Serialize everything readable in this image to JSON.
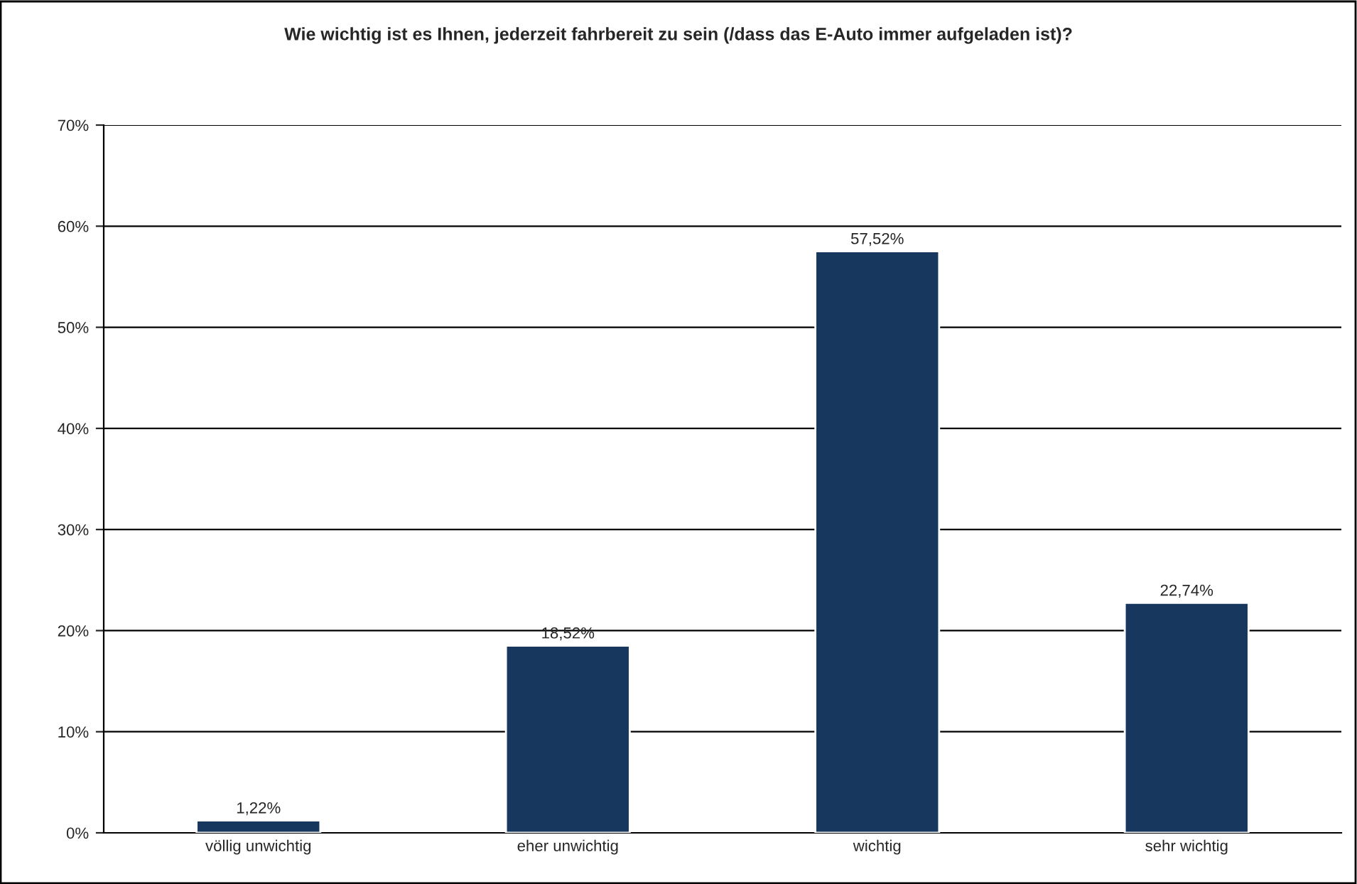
{
  "chart_data": {
    "type": "bar",
    "title": "Wie wichtig ist es Ihnen, jederzeit fahrbereit zu sein (/dass das E-Auto immer aufgeladen ist)?",
    "categories": [
      "völlig unwichtig",
      "eher unwichtig",
      "wichtig",
      "sehr wichtig"
    ],
    "values": [
      1.22,
      18.52,
      57.52,
      22.74
    ],
    "color": "#17375e",
    "value_labels": [
      "1,22%",
      "18,52%",
      "57,52%",
      "22,74%"
    ],
    "ylim": [
      0,
      70
    ],
    "yticks": [
      {
        "value": 0,
        "label": "0%"
      },
      {
        "value": 10,
        "label": "10%"
      },
      {
        "value": 20,
        "label": "20%"
      },
      {
        "value": 30,
        "label": "30%"
      },
      {
        "value": 40,
        "label": "40%"
      },
      {
        "value": 50,
        "label": "50%"
      },
      {
        "value": 60,
        "label": "60%"
      },
      {
        "value": 70,
        "label": "70%"
      }
    ],
    "grid": "y",
    "legend": false
  }
}
